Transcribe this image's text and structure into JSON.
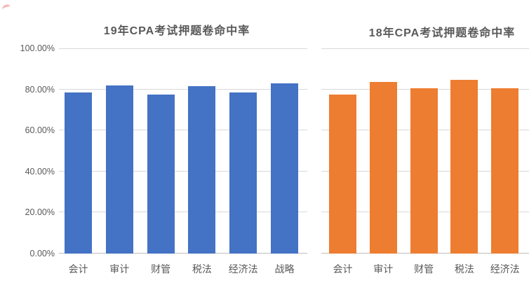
{
  "styles": {
    "grid_color": "#d9d9d9",
    "axis_color": "#bfbfbf",
    "text_color": "#595959",
    "blue": "#4472c4",
    "orange": "#ed7d31",
    "annotation_mark_color": "#e84a4a"
  },
  "chart_data": [
    {
      "id": "chart-19",
      "type": "bar",
      "title": "19年CPA考试押题卷命中率",
      "categories": [
        "会计",
        "审计",
        "财管",
        "税法",
        "经济法",
        "战略"
      ],
      "values": [
        78.5,
        82,
        77.5,
        81.5,
        78.5,
        83
      ],
      "bar_color": "#4472c4",
      "xlabel": "",
      "ylabel": "",
      "ylim": [
        0,
        100
      ],
      "ytick_step": 20,
      "ytick_labels": [
        "0.00%",
        "20.00%",
        "40.00%",
        "60.00%",
        "80.00%",
        "100.00%"
      ],
      "show_y_labels": true,
      "grid": true,
      "legend_position": "none"
    },
    {
      "id": "chart-18",
      "type": "bar",
      "title": "18年CPA考试押题卷命中率",
      "categories": [
        "会计",
        "审计",
        "财管",
        "税法",
        "经济法"
      ],
      "values": [
        77.5,
        83.5,
        80.5,
        84.5,
        80.5
      ],
      "bar_color": "#ed7d31",
      "xlabel": "",
      "ylabel": "",
      "ylim": [
        0,
        100
      ],
      "ytick_step": 20,
      "ytick_labels": [
        "0.00%",
        "20.00%",
        "40.00%",
        "60.00%",
        "80.00%",
        "100.00%"
      ],
      "show_y_labels": false,
      "grid": true,
      "legend_position": "none"
    }
  ]
}
